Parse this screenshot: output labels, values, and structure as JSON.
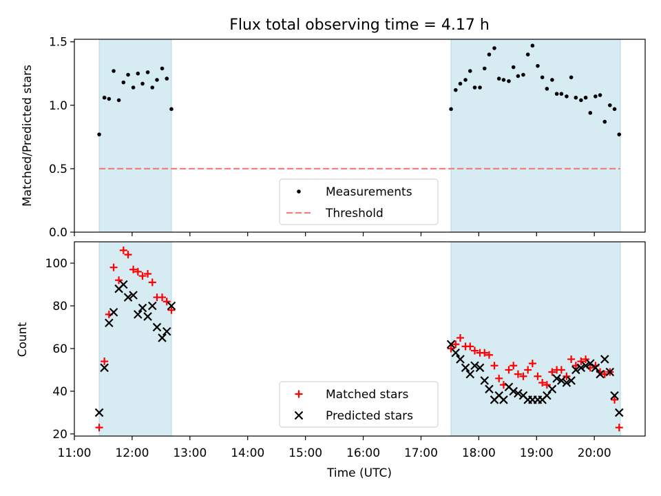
{
  "figure_title": "Flux total observing time = 4.17 h",
  "colors": {
    "shade": "#add8e6",
    "measurement": "#000000",
    "threshold": "#f08080",
    "matched": "#ff0000",
    "predicted": "#000000"
  },
  "chart_data": [
    {
      "type": "scatter",
      "panel": "top",
      "title": "Flux total observing time = 4.17 h",
      "xlabel": "",
      "ylabel": "Matched/Predicted stars",
      "xlim": [
        11.0,
        20.88
      ],
      "ylim": [
        0.0,
        1.52
      ],
      "yticks": [
        0.0,
        0.5,
        1.0,
        1.5
      ],
      "ytick_labels": [
        "0.0",
        "0.5",
        "1.0",
        "1.5"
      ],
      "shaded_intervals": [
        [
          11.43,
          12.68
        ],
        [
          17.52,
          20.45
        ]
      ],
      "threshold": 0.5,
      "legend": {
        "position": "lower-center",
        "entries": [
          "Measurements",
          "Threshold"
        ]
      },
      "series": [
        {
          "name": "Measurements",
          "marker": "dot",
          "x": [
            11.43,
            11.52,
            11.6,
            11.68,
            11.77,
            11.85,
            11.93,
            12.02,
            12.1,
            12.18,
            12.27,
            12.35,
            12.43,
            12.52,
            12.6,
            12.68,
            17.52,
            17.6,
            17.68,
            17.77,
            17.85,
            17.93,
            18.02,
            18.1,
            18.18,
            18.27,
            18.35,
            18.43,
            18.52,
            18.6,
            18.68,
            18.77,
            18.85,
            18.93,
            19.02,
            19.1,
            19.18,
            19.27,
            19.35,
            19.43,
            19.52,
            19.6,
            19.68,
            19.77,
            19.85,
            19.93,
            20.02,
            20.1,
            20.18,
            20.27,
            20.35,
            20.43
          ],
          "y": [
            0.77,
            1.06,
            1.05,
            1.27,
            1.04,
            1.18,
            1.24,
            1.14,
            1.25,
            1.17,
            1.26,
            1.14,
            1.2,
            1.29,
            1.21,
            0.97,
            0.97,
            1.12,
            1.17,
            1.2,
            1.27,
            1.14,
            1.14,
            1.29,
            1.4,
            1.45,
            1.21,
            1.2,
            1.19,
            1.3,
            1.23,
            1.24,
            1.4,
            1.47,
            1.31,
            1.22,
            1.13,
            1.2,
            1.09,
            1.09,
            1.07,
            1.22,
            1.06,
            1.04,
            1.06,
            0.94,
            1.07,
            1.08,
            0.87,
            1.0,
            0.97,
            0.77
          ]
        },
        {
          "name": "Threshold",
          "style": "dashed",
          "x": [
            11.43,
            20.45
          ],
          "y": [
            0.5,
            0.5
          ]
        }
      ]
    },
    {
      "type": "scatter",
      "panel": "bottom",
      "title": "",
      "xlabel": "Time (UTC)",
      "ylabel": "Count",
      "xlim": [
        11.0,
        20.88
      ],
      "ylim": [
        19,
        110
      ],
      "yticks": [
        20,
        40,
        60,
        80,
        100
      ],
      "ytick_labels": [
        "20",
        "40",
        "60",
        "80",
        "100"
      ],
      "xticks": [
        11,
        12,
        13,
        14,
        15,
        16,
        17,
        18,
        19,
        20
      ],
      "xtick_labels": [
        "11:00",
        "12:00",
        "13:00",
        "14:00",
        "15:00",
        "16:00",
        "17:00",
        "18:00",
        "19:00",
        "20:00"
      ],
      "shaded_intervals": [
        [
          11.43,
          12.68
        ],
        [
          17.52,
          20.45
        ]
      ],
      "legend": {
        "position": "lower-center",
        "entries": [
          "Matched stars",
          "Predicted stars"
        ]
      },
      "series": [
        {
          "name": "Matched stars",
          "marker": "plus",
          "x": [
            11.43,
            11.52,
            11.6,
            11.68,
            11.77,
            11.85,
            11.93,
            12.02,
            12.1,
            12.18,
            12.27,
            12.35,
            12.43,
            12.52,
            12.6,
            12.68,
            17.52,
            17.6,
            17.68,
            17.77,
            17.85,
            17.93,
            18.02,
            18.1,
            18.18,
            18.27,
            18.35,
            18.43,
            18.52,
            18.6,
            18.68,
            18.77,
            18.85,
            18.93,
            19.02,
            19.1,
            19.18,
            19.27,
            19.35,
            19.43,
            19.52,
            19.6,
            19.68,
            19.77,
            19.85,
            19.93,
            20.02,
            20.1,
            20.18,
            20.27,
            20.35,
            20.43
          ],
          "y": [
            23,
            54,
            76,
            98,
            92,
            106,
            104,
            97,
            96,
            94,
            95,
            91,
            84,
            84,
            82,
            78,
            60,
            62,
            65,
            61,
            61,
            59,
            58,
            58,
            57,
            52,
            46,
            43,
            50,
            52,
            48,
            47,
            50,
            53,
            47,
            44,
            43,
            49,
            50,
            50,
            47,
            55,
            52,
            54,
            55,
            51,
            52,
            49,
            48,
            49,
            36,
            23
          ]
        },
        {
          "name": "Predicted stars",
          "marker": "x",
          "x": [
            11.43,
            11.52,
            11.6,
            11.68,
            11.77,
            11.85,
            11.93,
            12.02,
            12.1,
            12.18,
            12.27,
            12.35,
            12.43,
            12.52,
            12.6,
            12.68,
            17.52,
            17.6,
            17.68,
            17.77,
            17.85,
            17.93,
            18.02,
            18.1,
            18.18,
            18.27,
            18.35,
            18.43,
            18.52,
            18.6,
            18.68,
            18.77,
            18.85,
            18.93,
            19.02,
            19.1,
            19.18,
            19.27,
            19.35,
            19.43,
            19.52,
            19.6,
            19.68,
            19.77,
            19.85,
            19.93,
            20.02,
            20.1,
            20.18,
            20.27,
            20.35,
            20.43
          ],
          "y": [
            30,
            51,
            72,
            77,
            88,
            90,
            84,
            85,
            76,
            79,
            75,
            80,
            70,
            65,
            68,
            80,
            62,
            58,
            55,
            51,
            48,
            52,
            51,
            45,
            41,
            36,
            38,
            36,
            42,
            40,
            39,
            38,
            36,
            36,
            36,
            36,
            38,
            41,
            46,
            45,
            44,
            45,
            50,
            51,
            52,
            53,
            51,
            48,
            55,
            49,
            38,
            30
          ]
        }
      ]
    }
  ]
}
